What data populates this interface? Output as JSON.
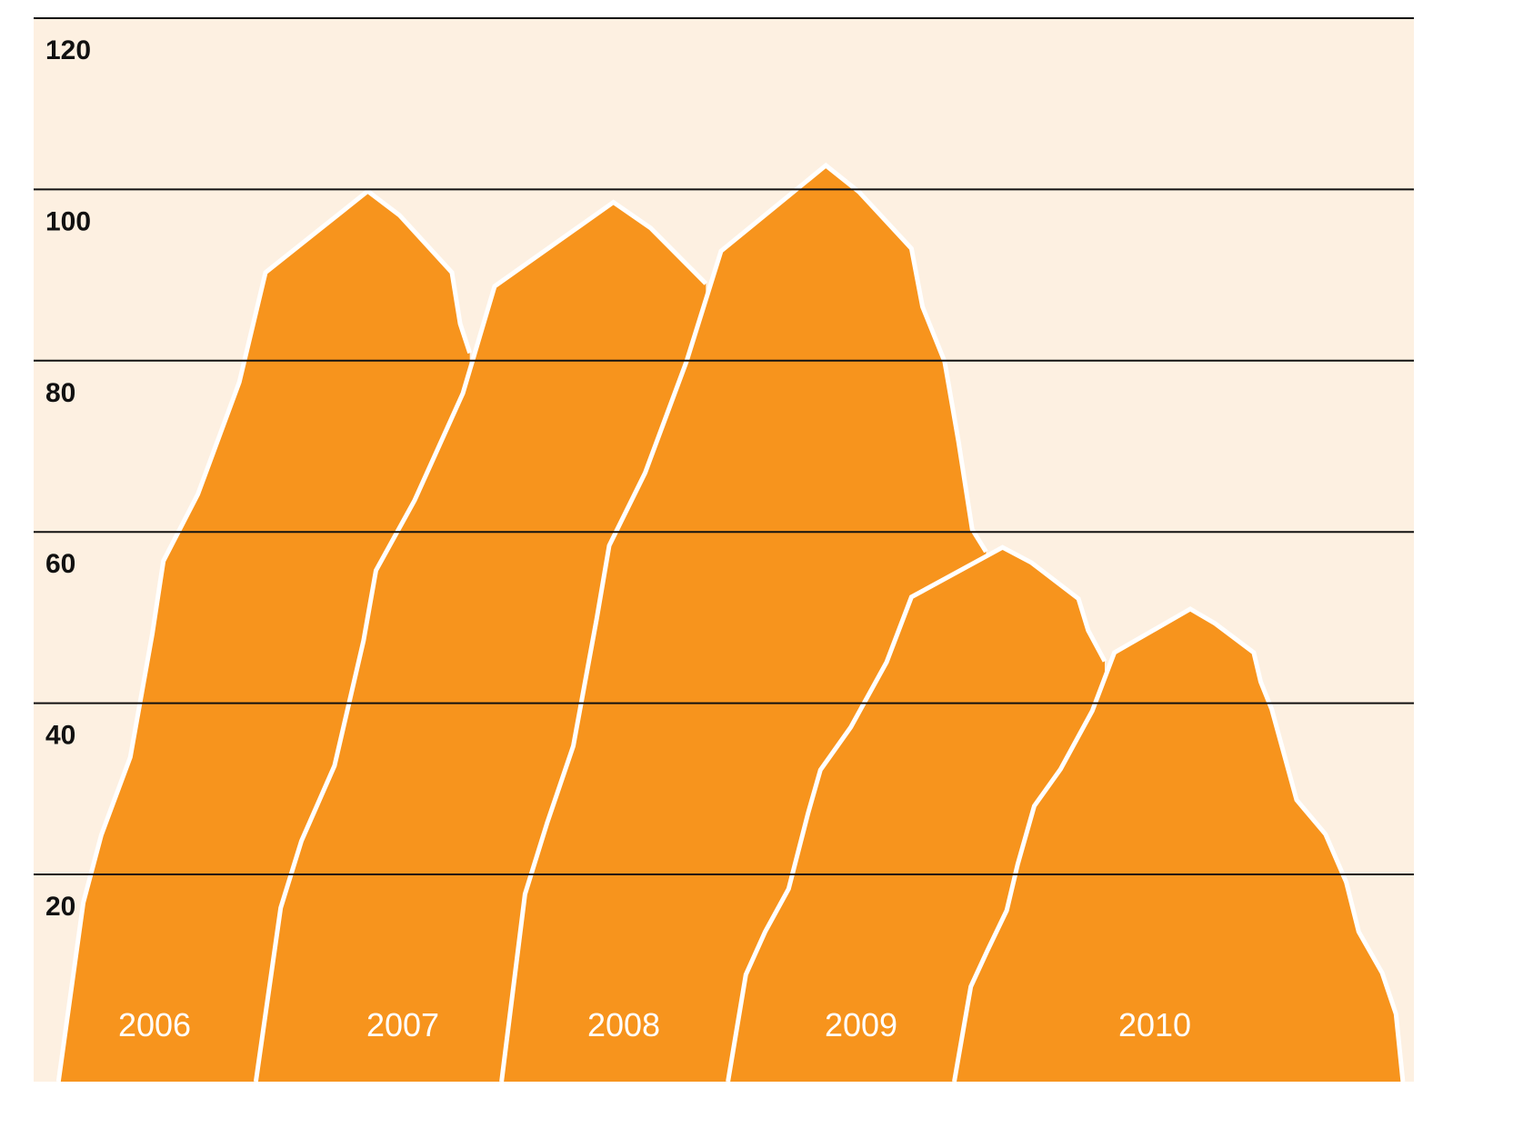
{
  "chart_data": {
    "type": "area",
    "ylim": [
      -4.2,
      120
    ],
    "yticks": [
      20,
      40,
      60,
      80,
      100,
      120
    ],
    "xlim": [
      0,
      100
    ],
    "grid": true,
    "background": "#fdf0e1",
    "series": [
      {
        "name": "2006",
        "color": "#f7941d",
        "x": [
          1.8,
          3.6,
          4.9,
          7.0,
          8.6,
          9.4,
          11.9,
          14.9,
          16.8,
          24.2,
          26.5,
          30.3,
          30.9,
          31.6
        ],
        "values": [
          -4.2,
          16.7,
          24.6,
          33.7,
          48.1,
          56.6,
          64.4,
          77.5,
          90.3,
          99.8,
          97.0,
          90.3,
          84.3,
          80.9
        ]
      },
      {
        "name": "2007",
        "color": "#f7941d",
        "x": [
          16.1,
          17.9,
          19.4,
          21.8,
          23.9,
          24.8,
          27.6,
          31.1,
          33.4,
          42.0,
          44.7,
          48.7
        ],
        "values": [
          -4.2,
          16.1,
          23.9,
          32.7,
          47.3,
          55.5,
          63.7,
          76.2,
          88.7,
          98.5,
          95.5,
          89.0
        ]
      },
      {
        "name": "2008",
        "color": "#f7941d",
        "x": [
          33.9,
          35.6,
          37.2,
          39.1,
          40.8,
          41.7,
          44.3,
          47.3,
          49.8,
          57.4,
          59.8,
          63.6,
          64.4,
          66.0,
          67.0,
          68.0,
          69.0
        ],
        "values": [
          -4.2,
          17.7,
          26.0,
          35.0,
          49.9,
          58.4,
          66.9,
          79.9,
          92.8,
          102.8,
          99.7,
          93.1,
          86.3,
          79.9,
          70.6,
          60.3,
          57.7
        ]
      },
      {
        "name": "2009",
        "color": "#f7941d",
        "x": [
          50.3,
          51.6,
          53.0,
          54.7,
          56.1,
          57.0,
          59.2,
          61.8,
          63.6,
          70.2,
          72.3,
          75.7,
          76.4,
          77.6
        ],
        "values": [
          -4.2,
          8.3,
          13.3,
          18.3,
          27.1,
          32.2,
          37.2,
          44.8,
          52.4,
          58.2,
          56.4,
          52.2,
          48.5,
          44.9
        ]
      },
      {
        "name": "2010",
        "color": "#f7941d",
        "x": [
          66.7,
          67.9,
          69.1,
          70.5,
          71.3,
          72.5,
          74.4,
          76.7,
          78.3,
          83.8,
          85.6,
          88.4,
          88.9,
          89.7,
          90.6,
          91.5,
          93.6,
          95.1,
          96.0,
          97.7,
          98.7,
          99.2
        ],
        "values": [
          -4.2,
          6.9,
          11.1,
          15.8,
          21.2,
          28.0,
          32.3,
          39.1,
          45.9,
          51.0,
          49.3,
          45.9,
          42.5,
          39.3,
          34.0,
          28.7,
          24.7,
          19.1,
          13.3,
          8.5,
          3.7,
          -4.2
        ]
      }
    ]
  }
}
